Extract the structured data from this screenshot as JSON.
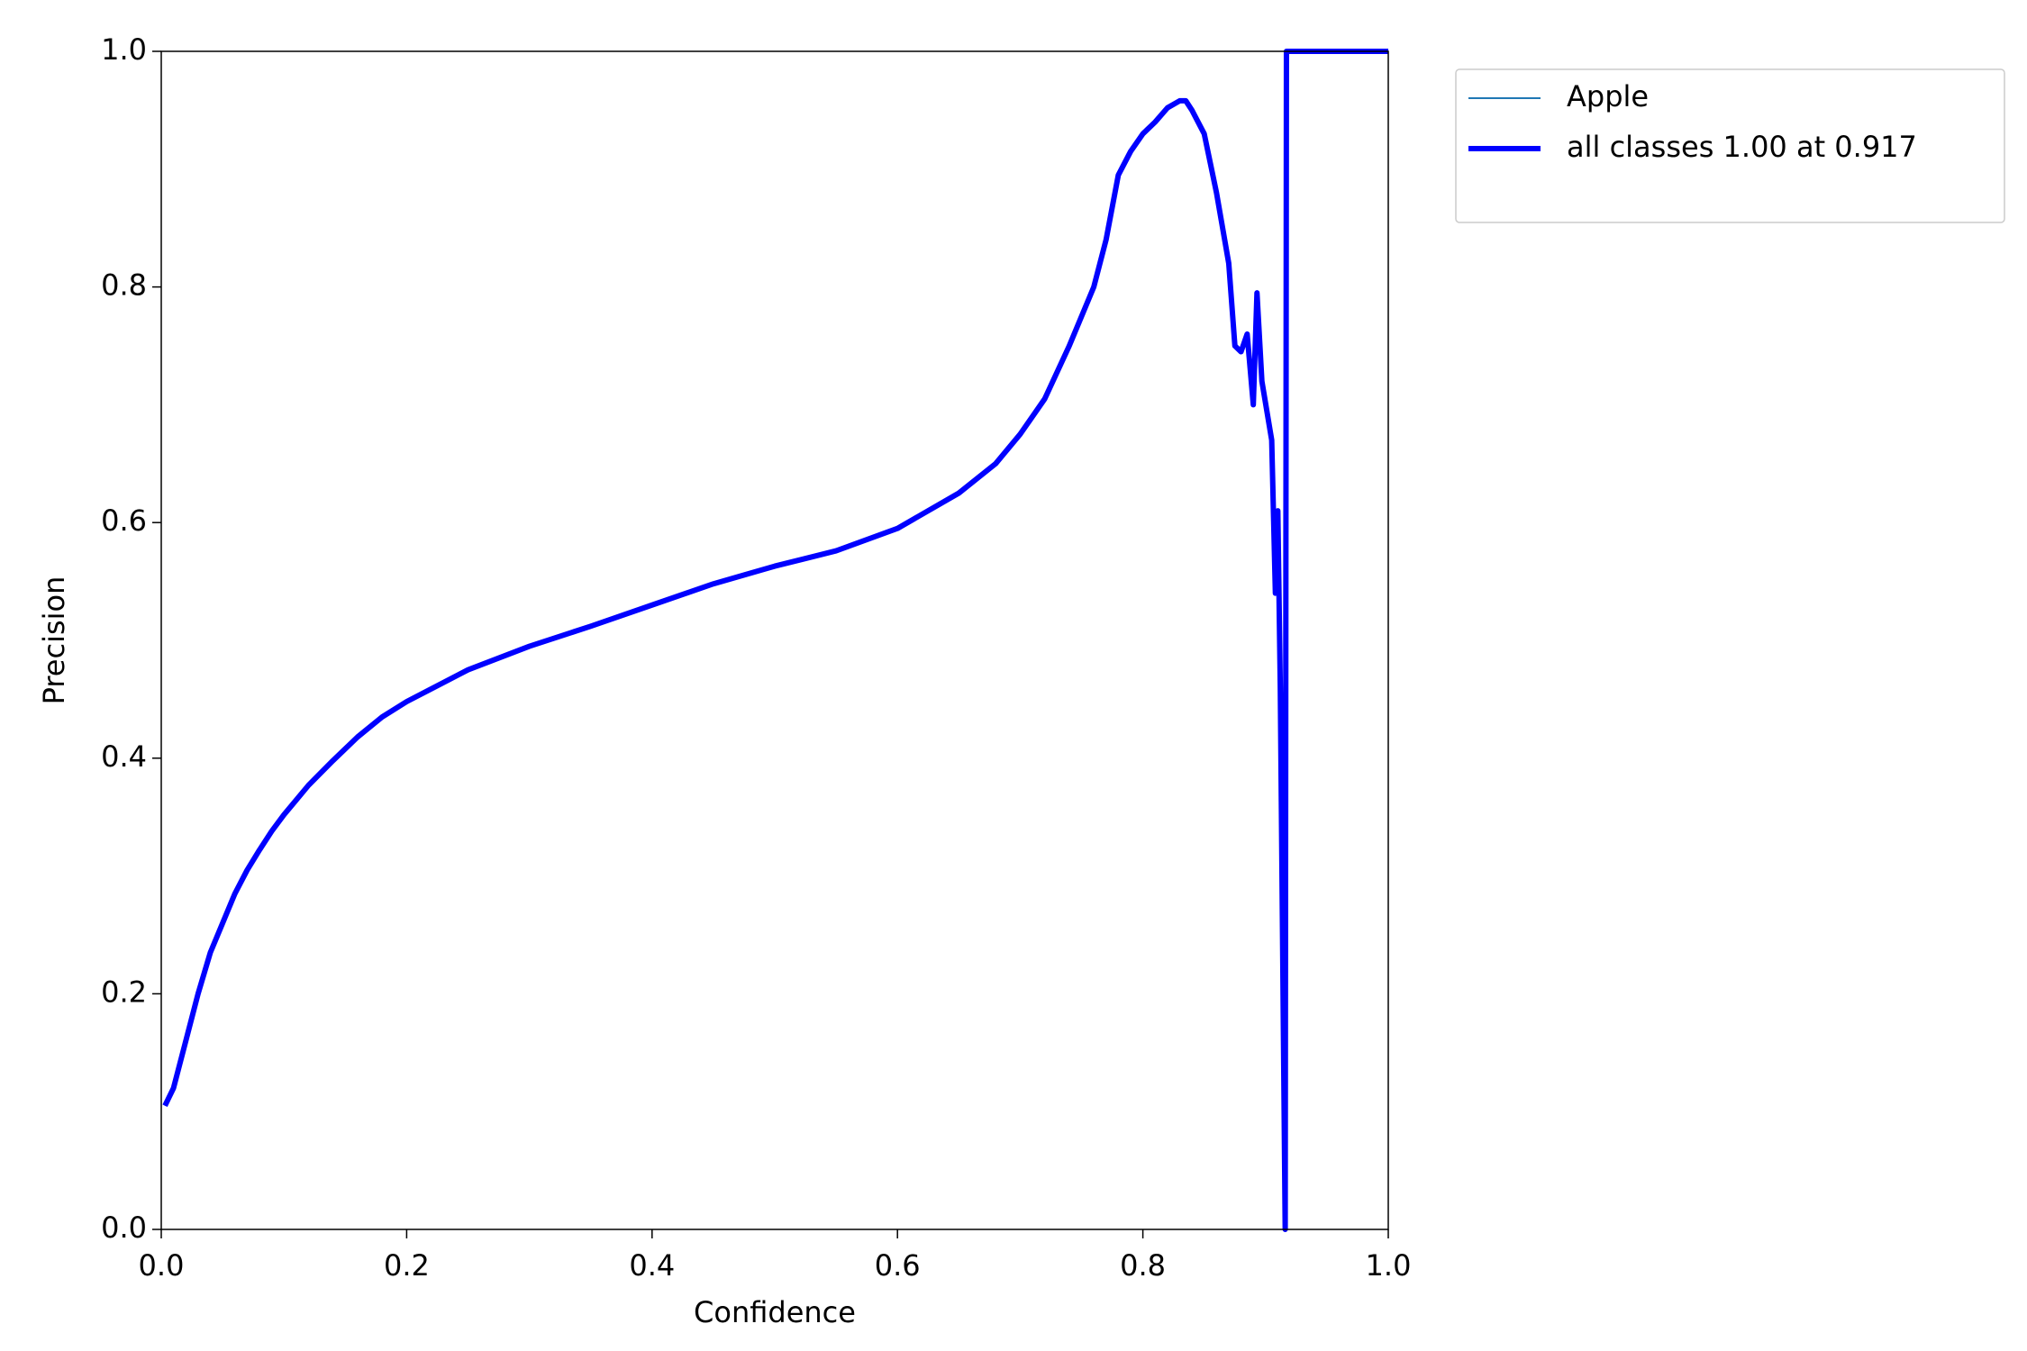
{
  "chart_data": {
    "type": "line",
    "xlabel": "Confidence",
    "ylabel": "Precision",
    "xlim": [
      0,
      1
    ],
    "ylim": [
      0,
      1
    ],
    "xticks": [
      {
        "value": 0,
        "label": "0.0"
      },
      0.2,
      0.4,
      0.6,
      0.8,
      {
        "value": 1,
        "label": "1.0"
      }
    ],
    "yticks": [
      {
        "value": 0,
        "label": "0.0"
      },
      0.2,
      0.4,
      0.6,
      0.8,
      {
        "value": 1,
        "label": "1.0"
      }
    ],
    "x": [
      0.003,
      0.01,
      0.02,
      0.03,
      0.04,
      0.05,
      0.06,
      0.07,
      0.08,
      0.09,
      0.1,
      0.12,
      0.14,
      0.16,
      0.18,
      0.2,
      0.25,
      0.3,
      0.35,
      0.4,
      0.45,
      0.5,
      0.55,
      0.6,
      0.65,
      0.68,
      0.7,
      0.72,
      0.74,
      0.76,
      0.77,
      0.78,
      0.79,
      0.8,
      0.81,
      0.82,
      0.83,
      0.835,
      0.84,
      0.85,
      0.86,
      0.87,
      0.875,
      0.88,
      0.885,
      0.89,
      0.893,
      0.897,
      0.905,
      0.908,
      0.91,
      0.912,
      0.916,
      0.917,
      1.0
    ],
    "series": [
      {
        "name": "Apple",
        "color": "#1f77b4",
        "values": [
          0.105,
          0.12,
          0.16,
          0.2,
          0.235,
          0.26,
          0.285,
          0.305,
          0.322,
          0.338,
          0.352,
          0.377,
          0.398,
          0.418,
          0.435,
          0.448,
          0.475,
          0.495,
          0.512,
          0.53,
          0.548,
          0.563,
          0.576,
          0.595,
          0.625,
          0.65,
          0.675,
          0.705,
          0.75,
          0.8,
          0.84,
          0.895,
          0.915,
          0.93,
          0.94,
          0.952,
          0.958,
          0.958,
          0.95,
          0.93,
          0.88,
          0.82,
          0.75,
          0.745,
          0.76,
          0.7,
          0.795,
          0.72,
          0.67,
          0.54,
          0.61,
          0.46,
          0.0,
          1.0,
          1.0
        ]
      },
      {
        "name": "all classes 1.00 at 0.917",
        "color": "#0000ff",
        "values": [
          0.105,
          0.12,
          0.16,
          0.2,
          0.235,
          0.26,
          0.285,
          0.305,
          0.322,
          0.338,
          0.352,
          0.377,
          0.398,
          0.418,
          0.435,
          0.448,
          0.475,
          0.495,
          0.512,
          0.53,
          0.548,
          0.563,
          0.576,
          0.595,
          0.625,
          0.65,
          0.675,
          0.705,
          0.75,
          0.8,
          0.84,
          0.895,
          0.915,
          0.93,
          0.94,
          0.952,
          0.958,
          0.958,
          0.95,
          0.93,
          0.88,
          0.82,
          0.75,
          0.745,
          0.76,
          0.7,
          0.795,
          0.72,
          0.67,
          0.54,
          0.61,
          0.46,
          0.0,
          1.0,
          1.0
        ]
      }
    ],
    "legend": "outside upper right"
  }
}
